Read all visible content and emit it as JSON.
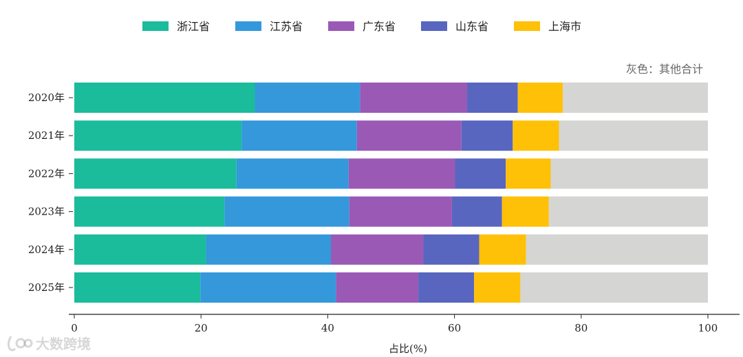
{
  "chart_data": {
    "type": "bar",
    "orientation": "horizontal",
    "stacked": true,
    "categories": [
      "2020年",
      "2021年",
      "2022年",
      "2023年",
      "2024年",
      "2025年"
    ],
    "series": [
      {
        "name": "浙江省",
        "color": "#1ABC9C",
        "values": [
          28.5,
          26.4,
          25.6,
          23.7,
          20.8,
          19.9
        ]
      },
      {
        "name": "江苏省",
        "color": "#3498DB",
        "values": [
          16.6,
          18.2,
          17.7,
          19.7,
          19.7,
          21.4
        ]
      },
      {
        "name": "广东省",
        "color": "#9B59B6",
        "values": [
          16.9,
          16.5,
          16.8,
          16.2,
          14.6,
          13.0
        ]
      },
      {
        "name": "山东省",
        "color": "#5866BF",
        "values": [
          8.0,
          8.1,
          8.0,
          7.9,
          8.8,
          8.8
        ]
      },
      {
        "name": "上海市",
        "color": "#FFC107",
        "values": [
          7.1,
          7.3,
          7.1,
          7.4,
          7.4,
          7.3
        ]
      },
      {
        "name": "其他合计",
        "color": "#D5D5D3",
        "values": [
          22.9,
          23.5,
          24.8,
          25.1,
          28.7,
          29.6
        ]
      }
    ],
    "legend_names": [
      "浙江省",
      "江苏省",
      "广东省",
      "山东省",
      "上海市"
    ],
    "legend_position": "top",
    "xlabel": "占比(%)",
    "xlim": [
      0,
      100
    ],
    "xticks": [
      0,
      20,
      40,
      60,
      80,
      100
    ],
    "note": "灰色：其他合计",
    "grid": false
  },
  "watermark": "大数跨境"
}
